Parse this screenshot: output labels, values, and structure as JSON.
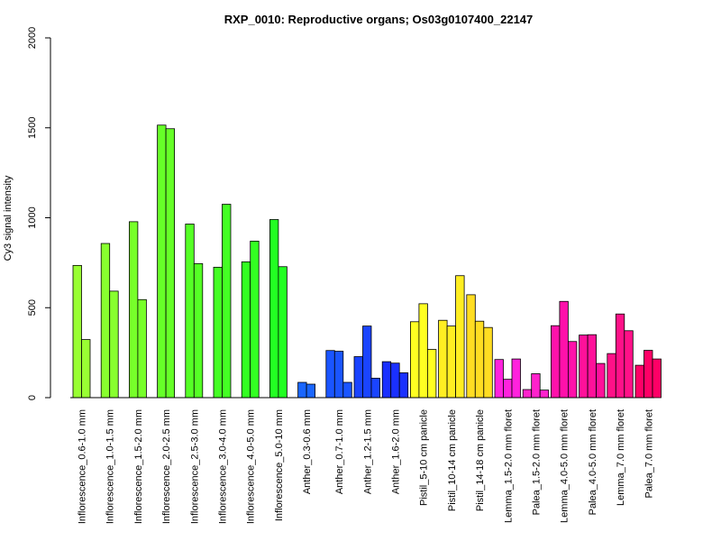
{
  "chart_data": {
    "type": "bar",
    "title": "RXP_0010: Reproductive organs; Os03g0107400_22147",
    "ylabel": "Cy3 signal intensity",
    "xlabel": "",
    "ylim": [
      0,
      2000
    ],
    "yticks": [
      0,
      500,
      1000,
      1500,
      2000
    ],
    "grid": false,
    "groups": [
      {
        "label": "Inflorescence_0.6-1.0 mm",
        "color": "#99ff33",
        "values": [
          735,
          323
        ]
      },
      {
        "label": "Inflorescence_1.0-1.5 mm",
        "color": "#88ff2e",
        "values": [
          857,
          592
        ]
      },
      {
        "label": "Inflorescence_1.5-2.0 mm",
        "color": "#77ff2a",
        "values": [
          978,
          545
        ]
      },
      {
        "label": "Inflorescence_2.0-2.5 mm",
        "color": "#66ff28",
        "values": [
          1515,
          1495
        ]
      },
      {
        "label": "Inflorescence_2.5-3.0 mm",
        "color": "#55ff26",
        "values": [
          965,
          745
        ]
      },
      {
        "label": "Inflorescence_3.0-4.0 mm",
        "color": "#44ff24",
        "values": [
          725,
          1075
        ]
      },
      {
        "label": "Inflorescence_4.0-5.0 mm",
        "color": "#33ff22",
        "values": [
          755,
          870
        ]
      },
      {
        "label": "Inflorescence_5.0-10 mm",
        "color": "#22ff22",
        "values": [
          990,
          728
        ]
      },
      {
        "label": "Anther_0.3-0.6 mm",
        "color": "#1a66ff",
        "values": [
          85,
          75
        ]
      },
      {
        "label": "Anther_0.7-1.0 mm",
        "color": "#1a55ff",
        "values": [
          262,
          258,
          85
        ]
      },
      {
        "label": "Anther_1.2-1.5 mm",
        "color": "#1a44ff",
        "values": [
          228,
          398,
          108
        ]
      },
      {
        "label": "Anther_1.6-2.0 mm",
        "color": "#1a30ff",
        "values": [
          200,
          192,
          138
        ]
      },
      {
        "label": "Pistil_5-10 cm panicle",
        "color": "#ffff22",
        "values": [
          422,
          522,
          268
        ]
      },
      {
        "label": "Pistil_10-14 cm panicle",
        "color": "#ffee22",
        "values": [
          430,
          398,
          678
        ]
      },
      {
        "label": "Pistil_14-18 cm panicle",
        "color": "#ffdd22",
        "values": [
          572,
          425,
          390
        ]
      },
      {
        "label": "Lemma_1.5-2.0 mm floret",
        "color": "#ff22dd",
        "values": [
          212,
          102,
          215
        ]
      },
      {
        "label": "Palea_1.5-2.0 mm floret",
        "color": "#ff22cc",
        "values": [
          45,
          133,
          42
        ]
      },
      {
        "label": "Lemma_4.0-5.0 mm floret",
        "color": "#ff11aa",
        "values": [
          400,
          535,
          312
        ]
      },
      {
        "label": "Palea_4.0-5.0 mm floret",
        "color": "#ff119a",
        "values": [
          348,
          350,
          190
        ]
      },
      {
        "label": "Lemma_7.0 mm floret",
        "color": "#ff1188",
        "values": [
          245,
          465,
          372
        ]
      },
      {
        "label": "Palea_7.0 mm floret",
        "color": "#ff0066",
        "values": [
          180,
          263,
          215
        ]
      }
    ]
  }
}
